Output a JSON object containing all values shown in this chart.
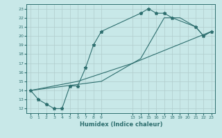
{
  "xlabel": "Humidex (Indice chaleur)",
  "background_color": "#c8e8e8",
  "grid_color": "#b0cccc",
  "line_color": "#2d6e6e",
  "ylim": [
    11.5,
    23.5
  ],
  "xlim": [
    -0.5,
    23.5
  ],
  "yticks": [
    12,
    13,
    14,
    15,
    16,
    17,
    18,
    19,
    20,
    21,
    22,
    23
  ],
  "xtick_positions": [
    0,
    1,
    2,
    3,
    4,
    5,
    6,
    7,
    8,
    9,
    13,
    14,
    15,
    16,
    17,
    18,
    19,
    20,
    21,
    22,
    23
  ],
  "xtick_labels": [
    "0",
    "1",
    "2",
    "3",
    "4",
    "5",
    "6",
    "7",
    "8",
    "9",
    "13",
    "14",
    "15",
    "16",
    "17",
    "18",
    "19",
    "20",
    "21",
    "22",
    "23"
  ],
  "line1_x": [
    0,
    1,
    2,
    3,
    4,
    5,
    6,
    7,
    8,
    9,
    14,
    15,
    16,
    17,
    18,
    21,
    22,
    23
  ],
  "line1_y": [
    14,
    13,
    12.5,
    12,
    12,
    14.5,
    14.5,
    16.5,
    19,
    20.5,
    22.5,
    23,
    22.5,
    22.5,
    22,
    21,
    20,
    20.5
  ],
  "line2_x": [
    0,
    6,
    13,
    23
  ],
  "line2_y": [
    14,
    15,
    17,
    20.5
  ],
  "line3_x": [
    0,
    9,
    14,
    17,
    19,
    21,
    22,
    23
  ],
  "line3_y": [
    14,
    15,
    17.5,
    22,
    22,
    21,
    20,
    20.5
  ]
}
